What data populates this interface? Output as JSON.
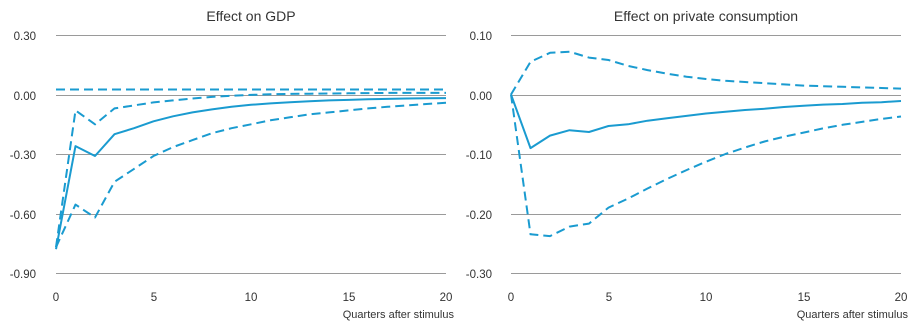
{
  "colors": {
    "series": "#1a9bd0",
    "grid": "#9a9a9a",
    "text": "#333333"
  },
  "chart_data": [
    {
      "type": "line",
      "title": "Effect on GDP",
      "xlabel": "Quarters after stimulus",
      "ylabel": "",
      "xlim": [
        0,
        20
      ],
      "ylim": [
        -0.9,
        0.3
      ],
      "x_ticks": [
        "0",
        "5",
        "10",
        "15",
        "20"
      ],
      "y_ticks": [
        "0.30",
        "0.00",
        "-0.30",
        "-0.60",
        "-0.90"
      ],
      "grid": true,
      "x": [
        0,
        1,
        2,
        3,
        4,
        5,
        6,
        7,
        8,
        9,
        10,
        11,
        12,
        13,
        14,
        15,
        16,
        17,
        18,
        19,
        20
      ],
      "series": [
        {
          "style": "solid",
          "values": [
            -0.78,
            -0.26,
            -0.31,
            -0.2,
            -0.17,
            -0.135,
            -0.11,
            -0.09,
            -0.075,
            -0.062,
            -0.052,
            -0.045,
            -0.039,
            -0.034,
            -0.03,
            -0.027,
            -0.024,
            -0.022,
            -0.02,
            -0.019,
            -0.018
          ]
        },
        {
          "style": "dashed",
          "values": [
            -0.77,
            -0.08,
            -0.15,
            -0.07,
            -0.055,
            -0.04,
            -0.03,
            -0.02,
            -0.012,
            -0.006,
            -0.002,
            0.001,
            0.003,
            0.004,
            0.005,
            0.006,
            0.007,
            0.008,
            0.008,
            0.008,
            0.008
          ]
        },
        {
          "style": "dashed",
          "values": [
            -0.77,
            -0.555,
            -0.62,
            -0.44,
            -0.375,
            -0.31,
            -0.265,
            -0.23,
            -0.195,
            -0.17,
            -0.15,
            -0.13,
            -0.115,
            -0.1,
            -0.09,
            -0.08,
            -0.07,
            -0.062,
            -0.055,
            -0.048,
            -0.042
          ]
        },
        {
          "style": "dashed",
          "values": [
            0.025,
            0.025,
            0.025,
            0.025,
            0.025,
            0.025,
            0.025,
            0.025,
            0.025,
            0.025,
            0.025,
            0.025,
            0.025,
            0.025,
            0.025,
            0.025,
            0.025,
            0.025,
            0.025,
            0.025,
            0.025
          ]
        }
      ]
    },
    {
      "type": "line",
      "title": "Effect on private consumption",
      "xlabel": "Quarters after stimulus",
      "ylabel": "",
      "xlim": [
        0,
        20
      ],
      "ylim": [
        -0.3,
        0.1
      ],
      "x_ticks": [
        "0",
        "5",
        "10",
        "15",
        "20"
      ],
      "y_ticks": [
        "0.10",
        "0.00",
        "-0.10",
        "-0.20",
        "-0.30"
      ],
      "grid": true,
      "x": [
        0,
        1,
        2,
        3,
        4,
        5,
        6,
        7,
        8,
        9,
        10,
        11,
        12,
        13,
        14,
        15,
        16,
        17,
        18,
        19,
        20
      ],
      "series": [
        {
          "style": "solid",
          "values": [
            0.0,
            -0.09,
            -0.069,
            -0.06,
            -0.063,
            -0.053,
            -0.05,
            -0.044,
            -0.04,
            -0.036,
            -0.032,
            -0.029,
            -0.026,
            -0.024,
            -0.021,
            -0.019,
            -0.017,
            -0.016,
            -0.014,
            -0.013,
            -0.011
          ]
        },
        {
          "style": "dashed",
          "values": [
            0.0,
            0.055,
            0.07,
            0.072,
            0.062,
            0.058,
            0.048,
            0.041,
            0.035,
            0.03,
            0.026,
            0.023,
            0.021,
            0.019,
            0.017,
            0.015,
            0.014,
            0.013,
            0.012,
            0.011,
            0.01
          ]
        },
        {
          "style": "dashed",
          "values": [
            0.0,
            -0.235,
            -0.238,
            -0.222,
            -0.217,
            -0.19,
            -0.175,
            -0.158,
            -0.142,
            -0.127,
            -0.113,
            -0.1,
            -0.089,
            -0.079,
            -0.071,
            -0.064,
            -0.057,
            -0.051,
            -0.046,
            -0.041,
            -0.037
          ]
        }
      ]
    }
  ]
}
